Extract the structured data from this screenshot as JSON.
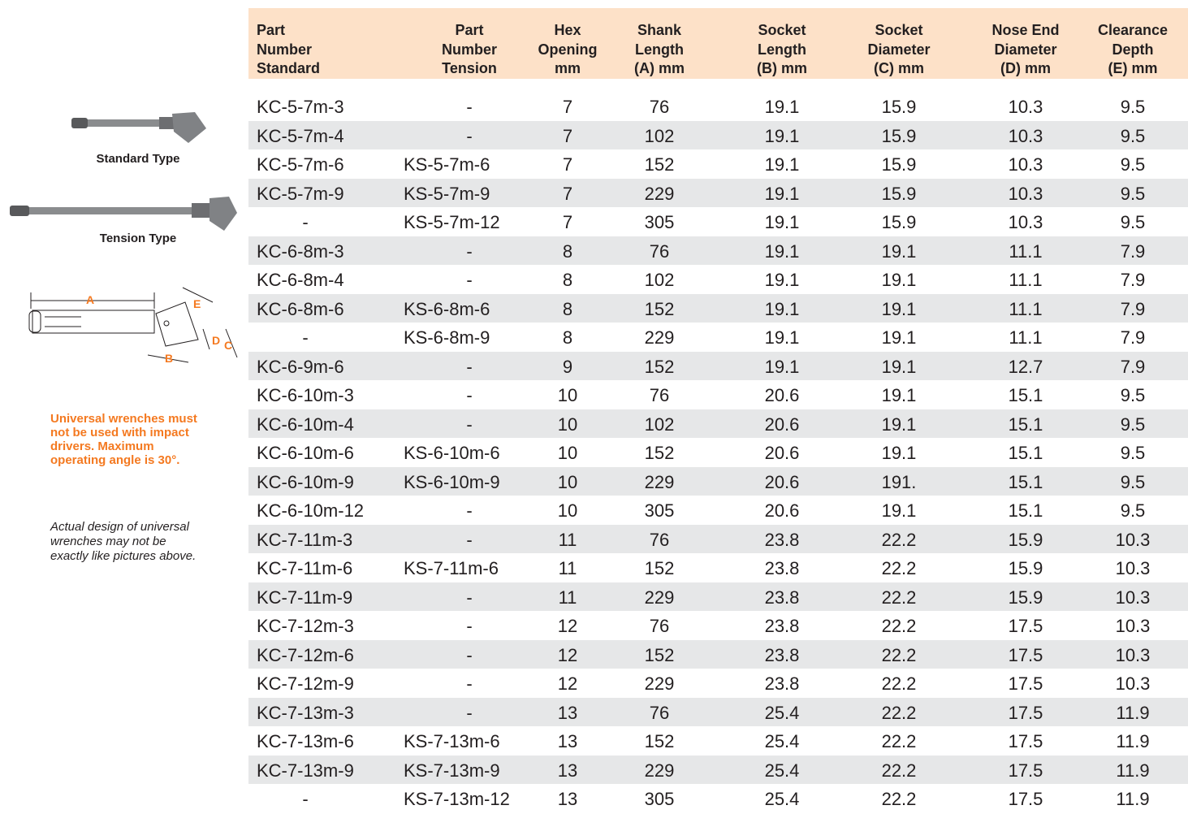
{
  "sidebar": {
    "standard_label": "Standard Type",
    "tension_label": "Tension Type",
    "diagram_labels": [
      "A",
      "E",
      "D",
      "C",
      "B"
    ],
    "warning": "Universal wrenches must not be used with impact drivers. Maximum operating angle is 30°.",
    "note": "Actual design of universal wrenches may not be exactly like pictures above."
  },
  "table": {
    "columns": [
      [
        "Part",
        "Number",
        "Standard"
      ],
      [
        "Part",
        "Number",
        "Tension"
      ],
      [
        "Hex",
        "Opening",
        "mm"
      ],
      [
        "Shank",
        "Length",
        "(A) mm"
      ],
      [
        "Socket",
        "Length",
        "(B) mm"
      ],
      [
        "Socket",
        "Diameter",
        "(C) mm"
      ],
      [
        "Nose End",
        "Diameter",
        "(D) mm"
      ],
      [
        "Clearance",
        "Depth",
        "(E) mm"
      ]
    ],
    "rows": [
      [
        "KC-5-7m-3",
        "-",
        "7",
        "76",
        "19.1",
        "15.9",
        "10.3",
        "9.5"
      ],
      [
        "KC-5-7m-4",
        "-",
        "7",
        "102",
        "19.1",
        "15.9",
        "10.3",
        "9.5"
      ],
      [
        "KC-5-7m-6",
        "KS-5-7m-6",
        "7",
        "152",
        "19.1",
        "15.9",
        "10.3",
        "9.5"
      ],
      [
        "KC-5-7m-9",
        "KS-5-7m-9",
        "7",
        "229",
        "19.1",
        "15.9",
        "10.3",
        "9.5"
      ],
      [
        "-",
        "KS-5-7m-12",
        "7",
        "305",
        "19.1",
        "15.9",
        "10.3",
        "9.5"
      ],
      [
        "KC-6-8m-3",
        "-",
        "8",
        "76",
        "19.1",
        "19.1",
        "11.1",
        "7.9"
      ],
      [
        "KC-6-8m-4",
        "-",
        "8",
        "102",
        "19.1",
        "19.1",
        "11.1",
        "7.9"
      ],
      [
        "KC-6-8m-6",
        "KS-6-8m-6",
        "8",
        "152",
        "19.1",
        "19.1",
        "11.1",
        "7.9"
      ],
      [
        "-",
        "KS-6-8m-9",
        "8",
        "229",
        "19.1",
        "19.1",
        "11.1",
        "7.9"
      ],
      [
        "KC-6-9m-6",
        "-",
        "9",
        "152",
        "19.1",
        "19.1",
        "12.7",
        "7.9"
      ],
      [
        "KC-6-10m-3",
        "-",
        "10",
        "76",
        "20.6",
        "19.1",
        "15.1",
        "9.5"
      ],
      [
        "KC-6-10m-4",
        "-",
        "10",
        "102",
        "20.6",
        "19.1",
        "15.1",
        "9.5"
      ],
      [
        "KC-6-10m-6",
        "KS-6-10m-6",
        "10",
        "152",
        "20.6",
        "19.1",
        "15.1",
        "9.5"
      ],
      [
        "KC-6-10m-9",
        "KS-6-10m-9",
        "10",
        "229",
        "20.6",
        "191.",
        "15.1",
        "9.5"
      ],
      [
        "KC-6-10m-12",
        "-",
        "10",
        "305",
        "20.6",
        "19.1",
        "15.1",
        "9.5"
      ],
      [
        "KC-7-11m-3",
        "-",
        "11",
        "76",
        "23.8",
        "22.2",
        "15.9",
        "10.3"
      ],
      [
        "KC-7-11m-6",
        "KS-7-11m-6",
        "11",
        "152",
        "23.8",
        "22.2",
        "15.9",
        "10.3"
      ],
      [
        "KC-7-11m-9",
        "-",
        "11",
        "229",
        "23.8",
        "22.2",
        "15.9",
        "10.3"
      ],
      [
        "KC-7-12m-3",
        "-",
        "12",
        "76",
        "23.8",
        "22.2",
        "17.5",
        "10.3"
      ],
      [
        "KC-7-12m-6",
        "-",
        "12",
        "152",
        "23.8",
        "22.2",
        "17.5",
        "10.3"
      ],
      [
        "KC-7-12m-9",
        "-",
        "12",
        "229",
        "23.8",
        "22.2",
        "17.5",
        "10.3"
      ],
      [
        "KC-7-13m-3",
        "-",
        "13",
        "76",
        "25.4",
        "22.2",
        "17.5",
        "11.9"
      ],
      [
        "KC-7-13m-6",
        "KS-7-13m-6",
        "13",
        "152",
        "25.4",
        "22.2",
        "17.5",
        "11.9"
      ],
      [
        "KC-7-13m-9",
        "KS-7-13m-9",
        "13",
        "229",
        "25.4",
        "22.2",
        "17.5",
        "11.9"
      ],
      [
        "-",
        "KS-7-13m-12",
        "13",
        "305",
        "25.4",
        "22.2",
        "17.5",
        "11.9"
      ]
    ]
  }
}
